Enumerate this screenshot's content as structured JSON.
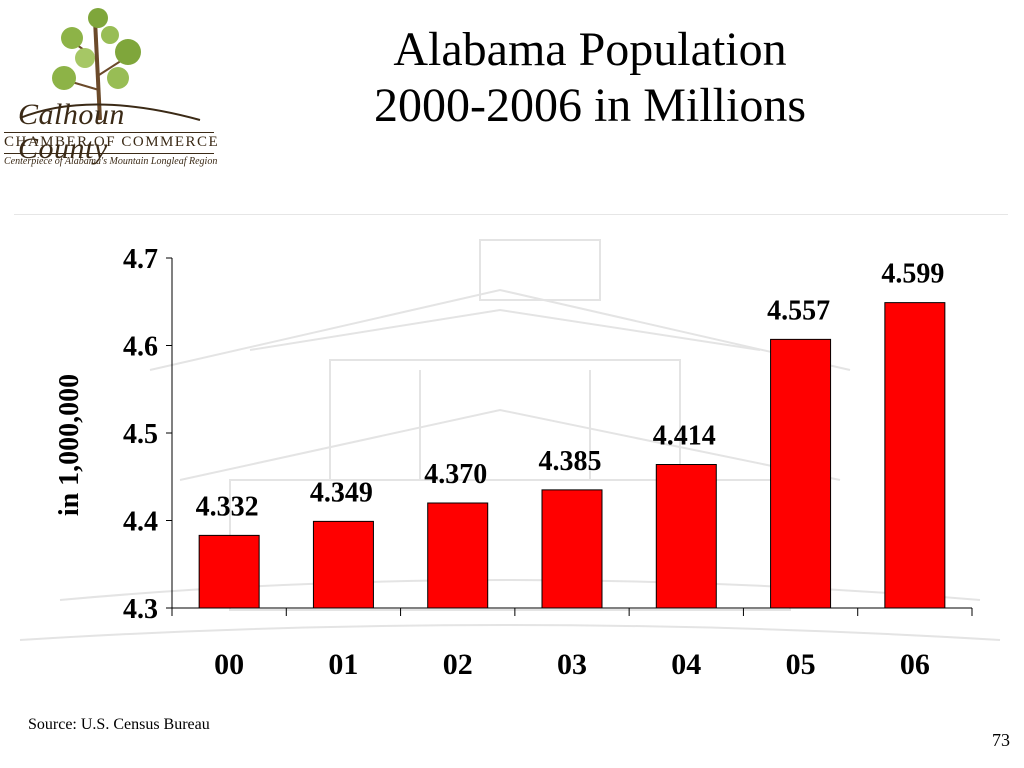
{
  "logo": {
    "name": "Calhoun County",
    "org": "CHAMBER OF COMMERCE",
    "tagline": "Centerpiece of Alabama's Mountain Longleaf Region"
  },
  "slide": {
    "title_line1": "Alabama Population",
    "title_line2": "2000-2006 in Millions",
    "source": "Source: U.S. Census Bureau",
    "page_number": "73"
  },
  "colors": {
    "bar": "#ff0000",
    "bar_border": "#000000"
  },
  "chart_data": {
    "type": "bar",
    "categories": [
      "00",
      "01",
      "02",
      "03",
      "04",
      "05",
      "06"
    ],
    "values": [
      4.332,
      4.349,
      4.37,
      4.385,
      4.414,
      4.557,
      4.599
    ],
    "bar_tops": [
      4.383,
      4.399,
      4.42,
      4.435,
      4.464,
      4.607,
      4.649
    ],
    "data_labels": [
      "4.332",
      "4.349",
      "4.370",
      "4.385",
      "4.414",
      "4.557",
      "4.599"
    ],
    "ylabel": "in 1,000,000",
    "xlabel": "",
    "ylim": [
      4.3,
      4.7
    ],
    "yticks": [
      "4.3",
      "4.4",
      "4.5",
      "4.6",
      "4.7"
    ],
    "grid": false,
    "legend": "none"
  }
}
